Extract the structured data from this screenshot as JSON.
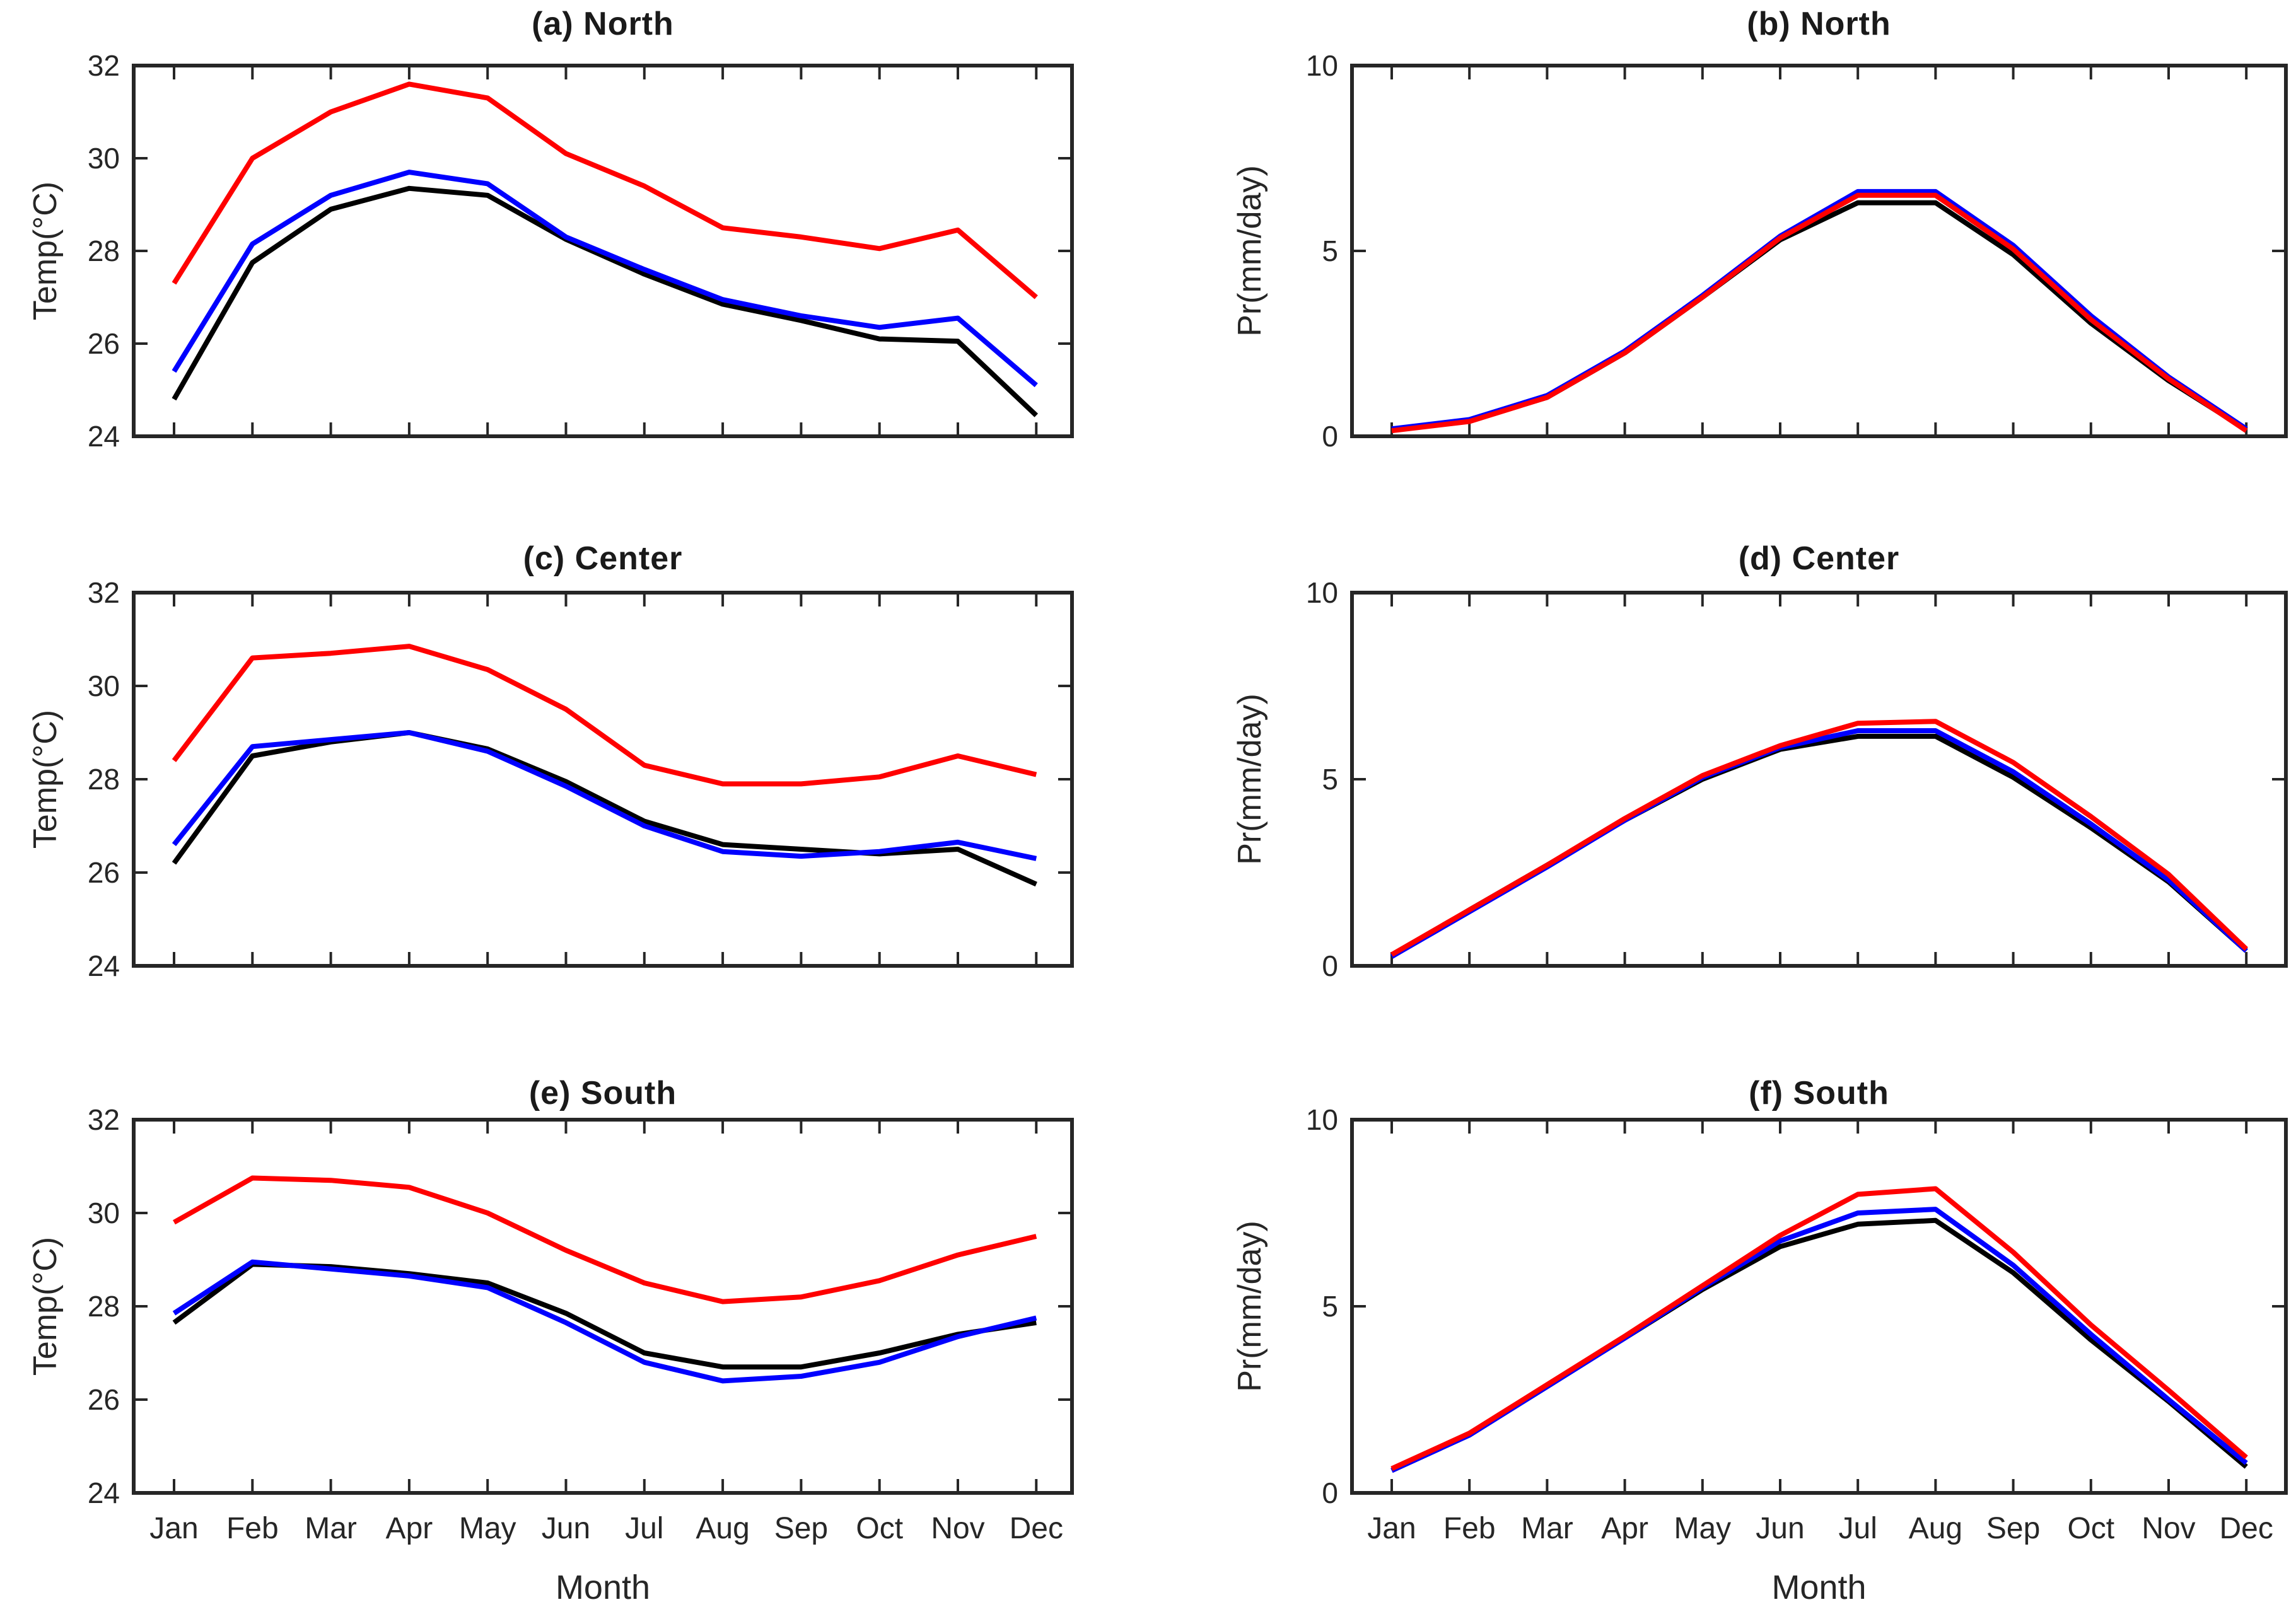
{
  "figure": {
    "background": "#ffffff",
    "axis_color": "#262626",
    "x_axis_label": "Month",
    "temp_ylabel": "Temp(°C)",
    "precip_ylabel": "Pr(mm/day)"
  },
  "chart_data": [
    {
      "id": "a",
      "title": "(a) North",
      "type": "line",
      "ylabel": "Temp(°C)",
      "ylim": [
        24,
        32
      ],
      "yticks": [
        24,
        26,
        28,
        30,
        32
      ],
      "grid": false,
      "legend": "none",
      "categories": [
        "Jan",
        "Feb",
        "Mar",
        "Apr",
        "May",
        "Jun",
        "Jul",
        "Aug",
        "Sep",
        "Oct",
        "Nov",
        "Dec"
      ],
      "series": [
        {
          "name": "black",
          "color": "#000000",
          "values": [
            24.8,
            27.75,
            28.9,
            29.35,
            29.2,
            28.25,
            27.5,
            26.85,
            26.5,
            26.1,
            26.05,
            24.45
          ]
        },
        {
          "name": "blue",
          "color": "#0000ff",
          "values": [
            25.4,
            28.15,
            29.2,
            29.7,
            29.45,
            28.3,
            27.6,
            26.95,
            26.6,
            26.35,
            26.55,
            25.1
          ]
        },
        {
          "name": "red",
          "color": "#ff0000",
          "values": [
            27.3,
            30.0,
            31.0,
            31.6,
            31.3,
            30.1,
            29.4,
            28.5,
            28.3,
            28.05,
            28.45,
            27.0
          ]
        }
      ]
    },
    {
      "id": "b",
      "title": "(b) North",
      "type": "line",
      "ylabel": "Pr(mm/day)",
      "ylim": [
        0,
        10
      ],
      "yticks": [
        0,
        5,
        10
      ],
      "grid": false,
      "legend": "none",
      "categories": [
        "Jan",
        "Feb",
        "Mar",
        "Apr",
        "May",
        "Jun",
        "Jul",
        "Aug",
        "Sep",
        "Oct",
        "Nov",
        "Dec"
      ],
      "series": [
        {
          "name": "black",
          "color": "#000000",
          "values": [
            0.18,
            0.42,
            1.05,
            2.25,
            3.75,
            5.3,
            6.3,
            6.3,
            4.9,
            3.05,
            1.5,
            0.18
          ]
        },
        {
          "name": "blue",
          "color": "#0000ff",
          "values": [
            0.2,
            0.45,
            1.1,
            2.3,
            3.8,
            5.4,
            6.6,
            6.6,
            5.15,
            3.25,
            1.6,
            0.2
          ]
        },
        {
          "name": "red",
          "color": "#ff0000",
          "values": [
            0.15,
            0.4,
            1.05,
            2.25,
            3.75,
            5.35,
            6.5,
            6.5,
            5.05,
            3.15,
            1.55,
            0.15
          ]
        }
      ]
    },
    {
      "id": "c",
      "title": "(c) Center",
      "type": "line",
      "ylabel": "Temp(°C)",
      "ylim": [
        24,
        32
      ],
      "yticks": [
        24,
        26,
        28,
        30,
        32
      ],
      "grid": false,
      "legend": "none",
      "categories": [
        "Jan",
        "Feb",
        "Mar",
        "Apr",
        "May",
        "Jun",
        "Jul",
        "Aug",
        "Sep",
        "Oct",
        "Nov",
        "Dec"
      ],
      "series": [
        {
          "name": "black",
          "color": "#000000",
          "values": [
            26.2,
            28.5,
            28.8,
            29.0,
            28.65,
            27.95,
            27.1,
            26.6,
            26.5,
            26.4,
            26.5,
            25.75
          ]
        },
        {
          "name": "blue",
          "color": "#0000ff",
          "values": [
            26.6,
            28.7,
            28.85,
            29.0,
            28.6,
            27.85,
            27.0,
            26.45,
            26.35,
            26.45,
            26.65,
            26.3
          ]
        },
        {
          "name": "red",
          "color": "#ff0000",
          "values": [
            28.4,
            30.6,
            30.7,
            30.85,
            30.35,
            29.5,
            28.3,
            27.9,
            27.9,
            28.05,
            28.5,
            28.1
          ]
        }
      ]
    },
    {
      "id": "d",
      "title": "(d) Center",
      "type": "line",
      "ylabel": "Pr(mm/day)",
      "ylim": [
        0,
        10
      ],
      "yticks": [
        0,
        5,
        10
      ],
      "grid": false,
      "legend": "none",
      "categories": [
        "Jan",
        "Feb",
        "Mar",
        "Apr",
        "May",
        "Jun",
        "Jul",
        "Aug",
        "Sep",
        "Oct",
        "Nov",
        "Dec"
      ],
      "series": [
        {
          "name": "black",
          "color": "#000000",
          "values": [
            0.25,
            1.5,
            2.7,
            3.9,
            5.0,
            5.8,
            6.15,
            6.15,
            5.05,
            3.7,
            2.25,
            0.4
          ]
        },
        {
          "name": "blue",
          "color": "#0000ff",
          "values": [
            0.25,
            1.45,
            2.65,
            3.9,
            5.05,
            5.85,
            6.3,
            6.3,
            5.2,
            3.8,
            2.3,
            0.4
          ]
        },
        {
          "name": "red",
          "color": "#ff0000",
          "values": [
            0.3,
            1.5,
            2.7,
            3.95,
            5.1,
            5.9,
            6.5,
            6.55,
            5.45,
            4.0,
            2.45,
            0.45
          ]
        }
      ]
    },
    {
      "id": "e",
      "title": "(e) South",
      "type": "line",
      "ylabel": "Temp(°C)",
      "ylim": [
        24,
        32
      ],
      "yticks": [
        24,
        26,
        28,
        30,
        32
      ],
      "grid": false,
      "legend": "none",
      "categories": [
        "Jan",
        "Feb",
        "Mar",
        "Apr",
        "May",
        "Jun",
        "Jul",
        "Aug",
        "Sep",
        "Oct",
        "Nov",
        "Dec"
      ],
      "series": [
        {
          "name": "black",
          "color": "#000000",
          "values": [
            27.65,
            28.9,
            28.85,
            28.7,
            28.5,
            27.85,
            27.0,
            26.7,
            26.7,
            27.0,
            27.4,
            27.65
          ]
        },
        {
          "name": "blue",
          "color": "#0000ff",
          "values": [
            27.85,
            28.95,
            28.8,
            28.65,
            28.4,
            27.65,
            26.8,
            26.4,
            26.5,
            26.8,
            27.35,
            27.75
          ]
        },
        {
          "name": "red",
          "color": "#ff0000",
          "values": [
            29.8,
            30.75,
            30.7,
            30.55,
            30.0,
            29.2,
            28.5,
            28.1,
            28.2,
            28.55,
            29.1,
            29.5
          ]
        }
      ]
    },
    {
      "id": "f",
      "title": "(f) South",
      "type": "line",
      "ylabel": "Pr(mm/day)",
      "ylim": [
        0,
        10
      ],
      "yticks": [
        0,
        5,
        10
      ],
      "grid": false,
      "legend": "none",
      "categories": [
        "Jan",
        "Feb",
        "Mar",
        "Apr",
        "May",
        "Jun",
        "Jul",
        "Aug",
        "Sep",
        "Oct",
        "Nov",
        "Dec"
      ],
      "series": [
        {
          "name": "black",
          "color": "#000000",
          "values": [
            0.6,
            1.55,
            2.85,
            4.15,
            5.45,
            6.6,
            7.2,
            7.3,
            5.9,
            4.1,
            2.45,
            0.7
          ]
        },
        {
          "name": "blue",
          "color": "#0000ff",
          "values": [
            0.6,
            1.55,
            2.85,
            4.15,
            5.5,
            6.75,
            7.5,
            7.6,
            6.1,
            4.25,
            2.5,
            0.8
          ]
        },
        {
          "name": "red",
          "color": "#ff0000",
          "values": [
            0.65,
            1.6,
            2.9,
            4.2,
            5.55,
            6.9,
            8.0,
            8.15,
            6.45,
            4.5,
            2.75,
            0.95
          ]
        }
      ]
    }
  ]
}
